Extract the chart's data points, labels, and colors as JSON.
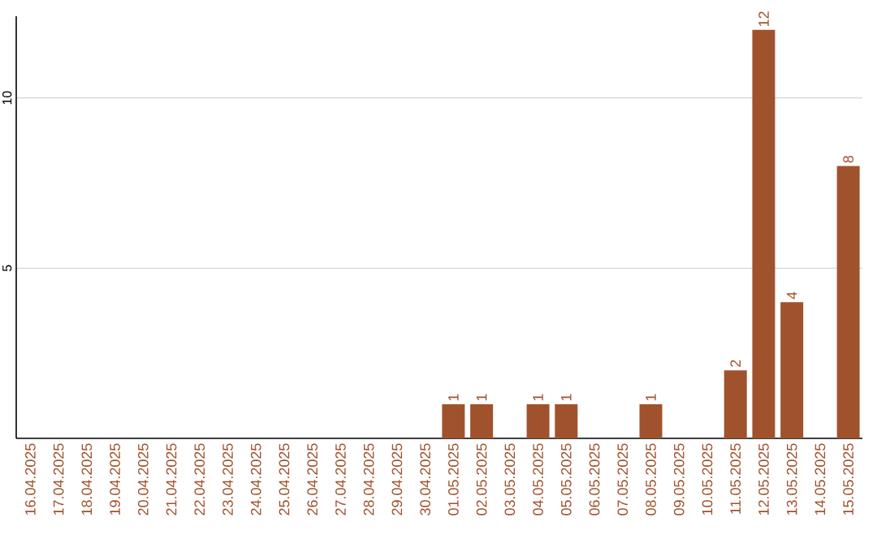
{
  "chart_data": {
    "type": "bar",
    "categories": [
      "16.04.2025",
      "17.04.2025",
      "18.04.2025",
      "19.04.2025",
      "20.04.2025",
      "21.04.2025",
      "22.04.2025",
      "23.04.2025",
      "24.04.2025",
      "25.04.2025",
      "26.04.2025",
      "27.04.2025",
      "28.04.2025",
      "29.04.2025",
      "30.04.2025",
      "01.05.2025",
      "02.05.2025",
      "03.05.2025",
      "04.05.2025",
      "05.05.2025",
      "06.05.2025",
      "07.05.2025",
      "08.05.2025",
      "09.05.2025",
      "10.05.2025",
      "11.05.2025",
      "12.05.2025",
      "13.05.2025",
      "14.05.2025",
      "15.05.2025"
    ],
    "values": [
      0,
      0,
      0,
      0,
      0,
      0,
      0,
      0,
      0,
      0,
      0,
      0,
      0,
      0,
      0,
      1,
      1,
      0,
      1,
      1,
      0,
      0,
      1,
      0,
      0,
      2,
      12,
      4,
      0,
      8
    ],
    "value_labels": [
      null,
      null,
      null,
      null,
      null,
      null,
      null,
      null,
      null,
      null,
      null,
      null,
      null,
      null,
      null,
      "1",
      "1",
      null,
      "1",
      "1",
      null,
      null,
      "1",
      null,
      null,
      "2",
      "12",
      "4",
      null,
      "8"
    ],
    "color": "#a0522d",
    "ylim": [
      0,
      12.4
    ],
    "yticks": [
      5,
      10
    ],
    "grid": "y"
  }
}
